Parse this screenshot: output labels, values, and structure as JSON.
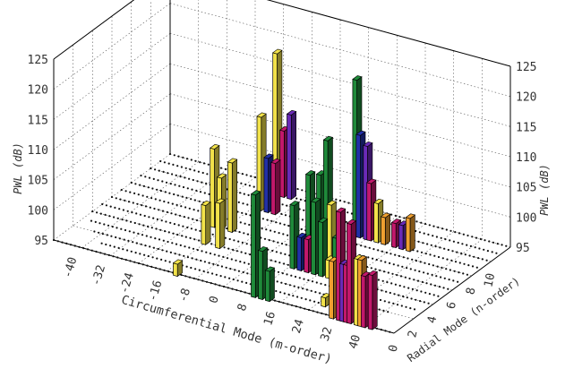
{
  "chart_data": {
    "type": "bar3d",
    "zlabel": "PWL (dB)",
    "xlabel": "Circumferential Mode (m-order)",
    "ylabel": "Radial Mode (n-order)",
    "z_ticks": [
      95,
      100,
      105,
      110,
      115,
      120,
      125
    ],
    "x_ticks": [
      -40,
      -32,
      -24,
      -16,
      -8,
      0,
      8,
      16,
      24,
      32,
      40
    ],
    "y_ticks": [
      0,
      2,
      4,
      6,
      8,
      10
    ],
    "zlim": [
      95,
      125
    ],
    "xlim": [
      -48,
      48
    ],
    "ylim": [
      0,
      12
    ],
    "colors": {
      "yellow": "#f2e24a",
      "green": "#1f8a3a",
      "magenta": "#c2186b",
      "purple": "#6a2ab8",
      "blue": "#2230a8",
      "orange": "#f0a030",
      "outline": "#000000"
    },
    "bars": [
      {
        "m": -13,
        "n": 0,
        "pwl": 97.0,
        "color": "yellow"
      },
      {
        "m": 9,
        "n": 0,
        "pwl": 112.0,
        "color": "green"
      },
      {
        "m": 11,
        "n": 0,
        "pwl": 103.0,
        "color": "green"
      },
      {
        "m": 13,
        "n": 0,
        "pwl": 100.0,
        "color": "green"
      },
      {
        "m": 31,
        "n": 0,
        "pwl": 104.5,
        "color": "orange"
      },
      {
        "m": 34,
        "n": 0,
        "pwl": 104.5,
        "color": "purple"
      },
      {
        "m": 35,
        "n": 0,
        "pwl": 104.5,
        "color": "magenta"
      },
      {
        "m": 33,
        "n": 0,
        "pwl": 113.0,
        "color": "magenta"
      },
      {
        "m": 36,
        "n": 0,
        "pwl": 111.5,
        "color": "magenta"
      },
      {
        "m": 38,
        "n": 0,
        "pwl": 106.0,
        "color": "yellow"
      },
      {
        "m": 39,
        "n": 0,
        "pwl": 106.0,
        "color": "orange"
      },
      {
        "m": 40,
        "n": 0,
        "pwl": 103.5,
        "color": "magenta"
      },
      {
        "m": 42,
        "n": 0,
        "pwl": 104.0,
        "color": "magenta"
      },
      {
        "m": 26,
        "n": 1,
        "pwl": 96.5,
        "color": "yellow"
      },
      {
        "m": -16,
        "n": 4,
        "pwl": 101.5,
        "color": "yellow"
      },
      {
        "m": -12,
        "n": 4,
        "pwl": 102.5,
        "color": "yellow"
      },
      {
        "m": 9,
        "n": 4,
        "pwl": 105.5,
        "color": "green"
      },
      {
        "m": 11,
        "n": 4,
        "pwl": 100.5,
        "color": "blue"
      },
      {
        "m": 13,
        "n": 4,
        "pwl": 100.5,
        "color": "magenta"
      },
      {
        "m": 15,
        "n": 4,
        "pwl": 107.0,
        "color": "green"
      },
      {
        "m": 17,
        "n": 4,
        "pwl": 104.0,
        "color": "green"
      },
      {
        "m": 19,
        "n": 4,
        "pwl": 98.0,
        "color": "yellow"
      },
      {
        "m": 21,
        "n": 4,
        "pwl": 102.0,
        "color": "green"
      },
      {
        "m": -19,
        "n": 6,
        "pwl": 108.0,
        "color": "yellow"
      },
      {
        "m": -17,
        "n": 6,
        "pwl": 103.5,
        "color": "yellow"
      },
      {
        "m": -14,
        "n": 6,
        "pwl": 106.5,
        "color": "yellow"
      },
      {
        "m": 8,
        "n": 6,
        "pwl": 108.0,
        "color": "green"
      },
      {
        "m": 11,
        "n": 6,
        "pwl": 108.5,
        "color": "green"
      },
      {
        "m": 13,
        "n": 6,
        "pwl": 114.5,
        "color": "green"
      },
      {
        "m": 14,
        "n": 6,
        "pwl": 104.0,
        "color": "yellow"
      },
      {
        "m": -14,
        "n": 9,
        "pwl": 110.5,
        "color": "yellow"
      },
      {
        "m": -12,
        "n": 9,
        "pwl": 104.0,
        "color": "blue"
      },
      {
        "m": -10,
        "n": 9,
        "pwl": 103.5,
        "color": "magenta"
      },
      {
        "m": 13,
        "n": 9,
        "pwl": 121.0,
        "color": "green"
      },
      {
        "m": 14,
        "n": 9,
        "pwl": 112.0,
        "color": "blue"
      },
      {
        "m": 16,
        "n": 9,
        "pwl": 110.5,
        "color": "purple"
      },
      {
        "m": 17,
        "n": 9,
        "pwl": 104.5,
        "color": "magenta"
      },
      {
        "m": 19,
        "n": 9,
        "pwl": 101.5,
        "color": "yellow"
      },
      {
        "m": 21,
        "n": 9,
        "pwl": 99.5,
        "color": "orange"
      },
      {
        "m": 24,
        "n": 9,
        "pwl": 99.0,
        "color": "magenta"
      },
      {
        "m": 26,
        "n": 9,
        "pwl": 99.0,
        "color": "purple"
      },
      {
        "m": 28,
        "n": 9,
        "pwl": 100.5,
        "color": "orange"
      },
      {
        "m": -15,
        "n": 11,
        "pwl": 118.5,
        "color": "yellow"
      },
      {
        "m": -13,
        "n": 11,
        "pwl": 106.0,
        "color": "magenta"
      },
      {
        "m": -11,
        "n": 11,
        "pwl": 109.0,
        "color": "purple"
      }
    ]
  }
}
